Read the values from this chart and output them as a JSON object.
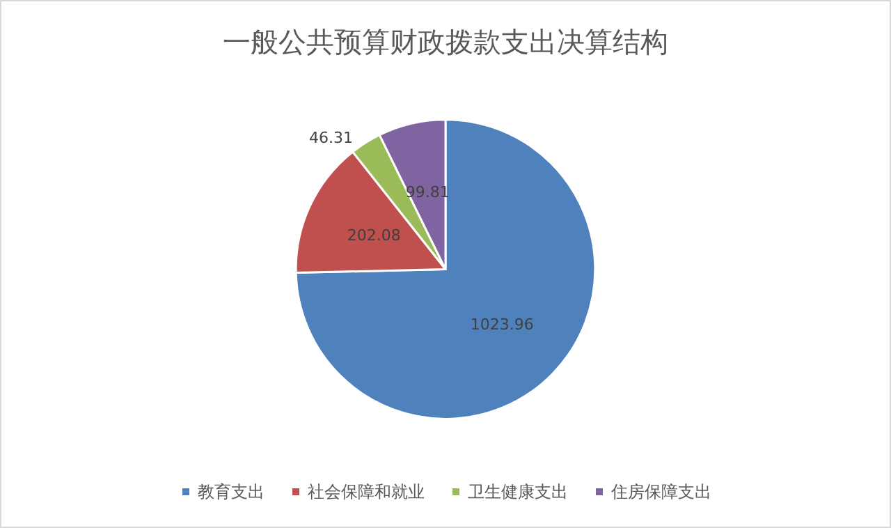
{
  "chart_data": {
    "type": "pie",
    "title": "一般公共预算财政拨款支出决算结构",
    "categories": [
      "教育支出",
      "社会保障和就业",
      "卫生健康支出",
      "住房保障支出"
    ],
    "values": [
      1023.96,
      202.08,
      46.31,
      99.81
    ],
    "colors": [
      "#4f81bd",
      "#c0504d",
      "#9bbb59",
      "#8064a2"
    ],
    "data_labels": true,
    "legend": "bottom"
  }
}
